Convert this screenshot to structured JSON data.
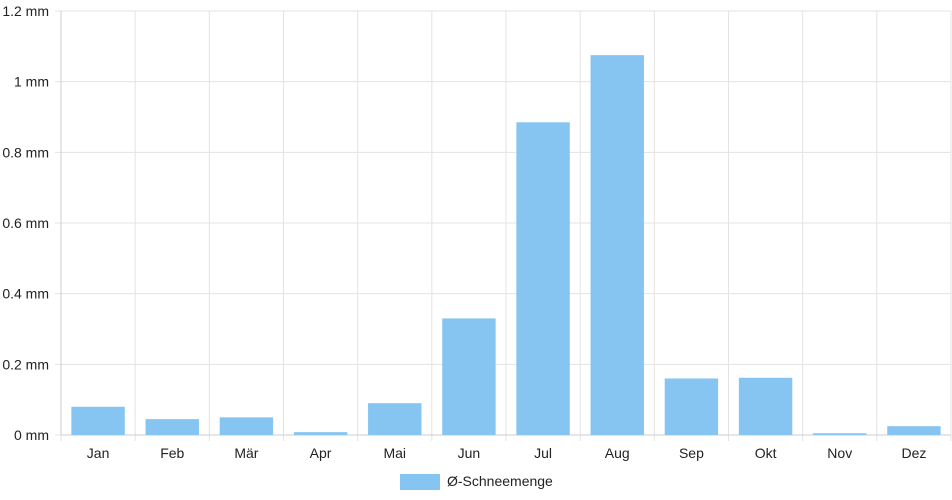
{
  "chart_data": {
    "type": "bar",
    "categories": [
      "Jan",
      "Feb",
      "Mär",
      "Apr",
      "Mai",
      "Jun",
      "Jul",
      "Aug",
      "Sep",
      "Okt",
      "Nov",
      "Dez"
    ],
    "series": [
      {
        "name": "Ø-Schneemenge",
        "color": "#86c5f1",
        "values": [
          0.08,
          0.045,
          0.05,
          0.008,
          0.09,
          0.33,
          0.885,
          1.075,
          0.16,
          0.162,
          0.005,
          0.025
        ]
      }
    ],
    "ylim": [
      0,
      1.2
    ],
    "yticks": [
      "0 mm",
      "0.2 mm",
      "0.4 mm",
      "0.6 mm",
      "0.8 mm",
      "1 mm",
      "1.2 mm"
    ],
    "grid": true,
    "legend_position": "bottom-center",
    "xlabel": "",
    "ylabel": ""
  }
}
